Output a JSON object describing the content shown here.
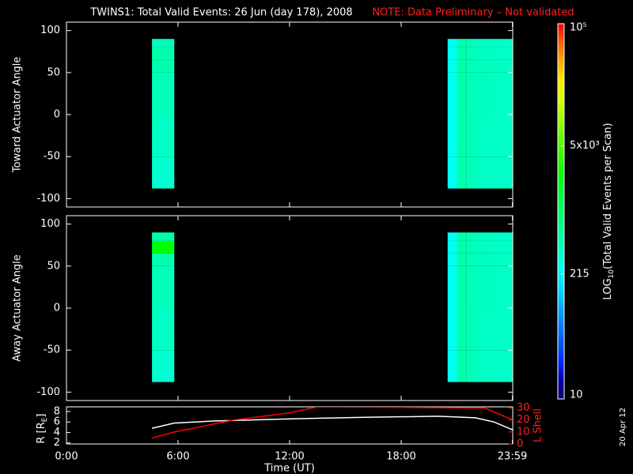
{
  "title": "TWINS1: Total Valid Events: 26 Jun (day 178), 2008",
  "note": "NOTE: Data Preliminary – Not validated",
  "stamp": "20 Apr 12",
  "chart_data": [
    {
      "type": "heatmap",
      "ylabel": "Toward Actuator Angle",
      "x": [
        4.6,
        5.8,
        20.5,
        21,
        21.5,
        22,
        23,
        24
      ],
      "y": [
        -88,
        -50,
        0,
        50,
        65,
        80,
        90
      ],
      "values": [
        [
          350,
          400,
          450,
          500,
          500,
          450
        ],
        null,
        [
          250,
          250,
          260,
          260,
          260,
          250
        ],
        [
          500,
          500,
          520,
          520,
          520,
          500
        ],
        [
          450,
          450,
          450,
          450,
          450,
          450
        ],
        [
          400,
          400,
          420,
          420,
          420,
          400
        ],
        [
          380,
          380,
          400,
          400,
          400,
          380
        ]
      ],
      "xlim": [
        0,
        24
      ],
      "ylim": [
        -110,
        110
      ],
      "yticks": [
        -100,
        -50,
        0,
        50,
        100
      ],
      "xticks": [
        0,
        6,
        12,
        18,
        23.98
      ]
    },
    {
      "type": "heatmap",
      "ylabel": "Away Actuator Angle",
      "x": [
        4.6,
        5.8,
        20.5,
        21,
        21.5,
        22,
        23,
        24
      ],
      "y": [
        -88,
        -50,
        0,
        50,
        65,
        80,
        90
      ],
      "values": [
        [
          350,
          400,
          450,
          500,
          2500,
          500
        ],
        null,
        [
          250,
          250,
          260,
          260,
          260,
          250
        ],
        [
          500,
          500,
          520,
          520,
          520,
          500
        ],
        [
          450,
          450,
          450,
          450,
          450,
          450
        ],
        [
          400,
          400,
          420,
          420,
          420,
          400
        ],
        [
          380,
          380,
          400,
          400,
          400,
          380
        ]
      ],
      "xlim": [
        0,
        24
      ],
      "ylim": [
        -110,
        110
      ],
      "yticks": [
        -100,
        -50,
        0,
        50,
        100
      ],
      "xticks": [
        0,
        6,
        12,
        18,
        23.98
      ]
    },
    {
      "type": "line",
      "ylabel": {
        "main": "R [R",
        "sub": "E",
        "end": "]"
      },
      "y2label": "L Shell",
      "xlabel": "Time (UT)",
      "xlim": [
        0,
        24
      ],
      "xticks": [
        {
          "value": 0,
          "label": "0:00"
        },
        {
          "value": 6,
          "label": "6:00"
        },
        {
          "value": 12,
          "label": "12:00"
        },
        {
          "value": 18,
          "label": "18:00"
        },
        {
          "value": 23.98,
          "label": "23:59"
        }
      ],
      "ylim": [
        1.8,
        8.9
      ],
      "yticks": [
        2,
        4,
        6,
        8
      ],
      "y2lim": [
        0,
        31
      ],
      "y2ticks": [
        0,
        10,
        20,
        30
      ],
      "series": [
        {
          "color": "#ffffff",
          "x": [
            4.6,
            5.8,
            8,
            12,
            16,
            20,
            22,
            23,
            24
          ],
          "values": [
            4.8,
            5.8,
            6.2,
            6.6,
            6.9,
            7.1,
            6.8,
            6.0,
            4.5
          ]
        },
        {
          "color": "#ff0000",
          "axis": "y2",
          "x": [
            4.6,
            5.8,
            9,
            12,
            13.5,
            22.5,
            24
          ],
          "values": [
            5,
            10,
            20,
            26,
            31,
            30,
            20
          ]
        }
      ]
    },
    {
      "type": "colorbar",
      "label": {
        "main": "LOG",
        "sub": "10",
        "end": "(Total Valid Events per Scan)"
      },
      "zlim": [
        10,
        100000
      ],
      "log": true,
      "ticks": [
        {
          "value": 10,
          "label": "10"
        },
        {
          "value": 215,
          "label": "215"
        },
        {
          "value": 5000,
          "label": "5x10³"
        },
        {
          "value": 100000,
          "label": "10⁵"
        }
      ]
    }
  ]
}
